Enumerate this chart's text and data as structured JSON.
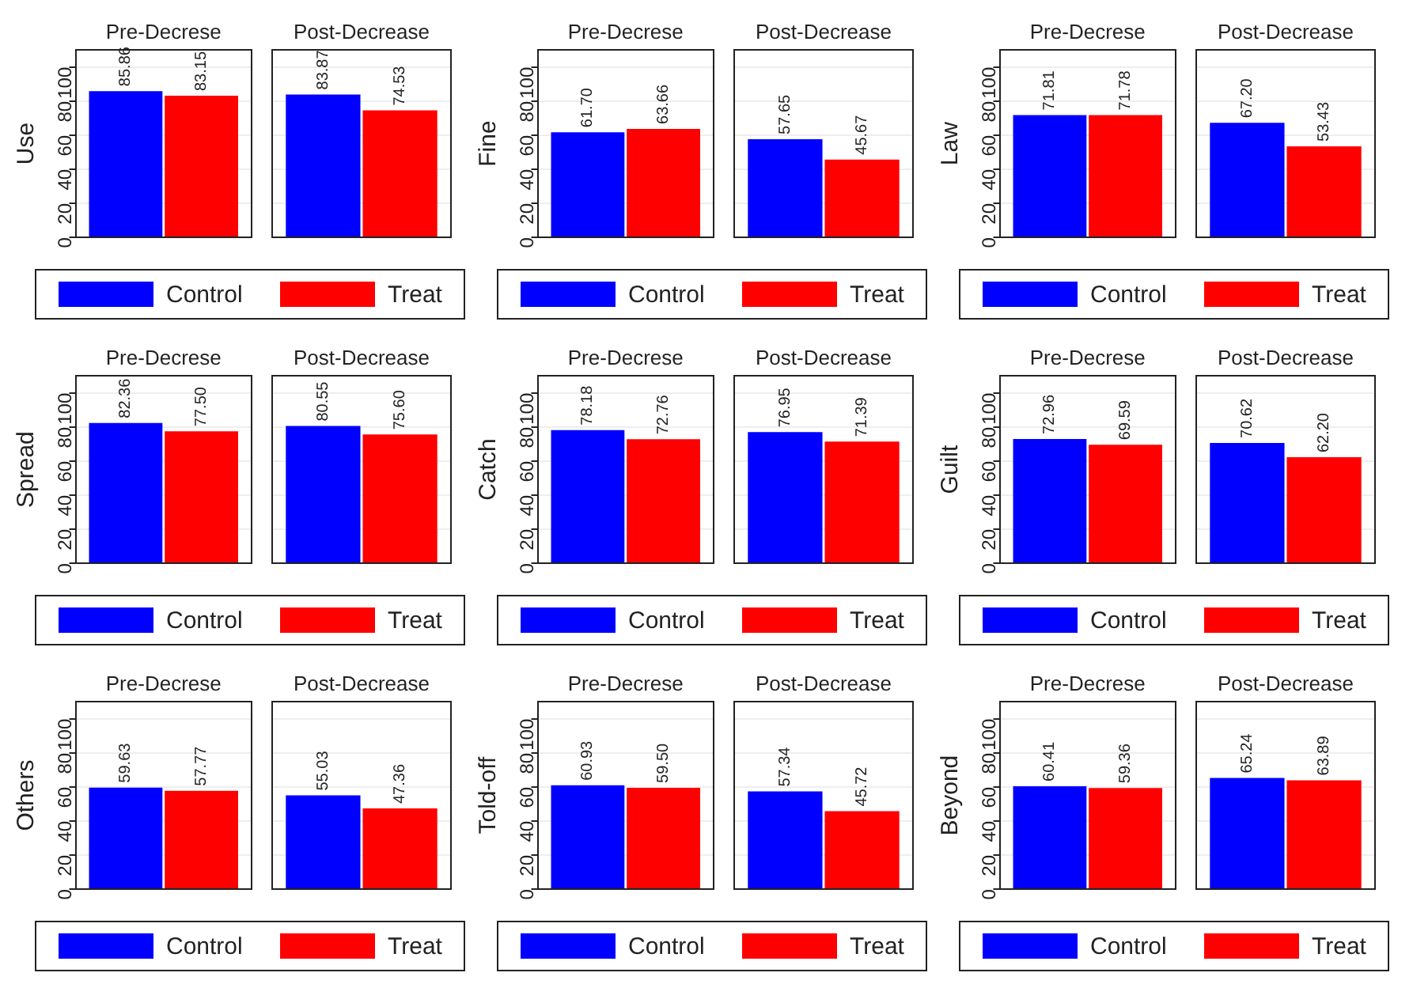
{
  "chart_data": [
    {
      "type": "bar",
      "ylabel": "Use",
      "categories": [
        "Pre-Decrese",
        "Post-Decrease"
      ],
      "ylim": [
        0,
        110
      ],
      "yticks": [
        0,
        20,
        40,
        60,
        80,
        100
      ],
      "grid": "y",
      "legend": "bottom",
      "series": [
        {
          "name": "Control",
          "color": "#0000ff",
          "values": [
            85.86,
            83.87
          ],
          "value_labels": [
            "85.86",
            "83.87"
          ]
        },
        {
          "name": "Treat",
          "color": "#ff0000",
          "values": [
            83.15,
            74.53
          ],
          "value_labels": [
            "83.15",
            "74.53"
          ]
        }
      ]
    },
    {
      "type": "bar",
      "ylabel": "Fine",
      "categories": [
        "Pre-Decrese",
        "Post-Decrease"
      ],
      "ylim": [
        0,
        110
      ],
      "yticks": [
        0,
        20,
        40,
        60,
        80,
        100
      ],
      "grid": "y",
      "legend": "bottom",
      "series": [
        {
          "name": "Control",
          "color": "#0000ff",
          "values": [
            61.7,
            57.65
          ],
          "value_labels": [
            "61.70",
            "57.65"
          ]
        },
        {
          "name": "Treat",
          "color": "#ff0000",
          "values": [
            63.66,
            45.67
          ],
          "value_labels": [
            "63.66",
            "45.67"
          ]
        }
      ]
    },
    {
      "type": "bar",
      "ylabel": "Law",
      "categories": [
        "Pre-Decrese",
        "Post-Decrease"
      ],
      "ylim": [
        0,
        110
      ],
      "yticks": [
        0,
        20,
        40,
        60,
        80,
        100
      ],
      "grid": "y",
      "legend": "bottom",
      "series": [
        {
          "name": "Control",
          "color": "#0000ff",
          "values": [
            71.81,
            67.2
          ],
          "value_labels": [
            "71.81",
            "67.20"
          ]
        },
        {
          "name": "Treat",
          "color": "#ff0000",
          "values": [
            71.78,
            53.43
          ],
          "value_labels": [
            "71.78",
            "53.43"
          ]
        }
      ]
    },
    {
      "type": "bar",
      "ylabel": "Spread",
      "categories": [
        "Pre-Decrese",
        "Post-Decrease"
      ],
      "ylim": [
        0,
        110
      ],
      "yticks": [
        0,
        20,
        40,
        60,
        80,
        100
      ],
      "grid": "y",
      "legend": "bottom",
      "series": [
        {
          "name": "Control",
          "color": "#0000ff",
          "values": [
            82.36,
            80.55
          ],
          "value_labels": [
            "82.36",
            "80.55"
          ]
        },
        {
          "name": "Treat",
          "color": "#ff0000",
          "values": [
            77.5,
            75.6
          ],
          "value_labels": [
            "77.50",
            "75.60"
          ]
        }
      ]
    },
    {
      "type": "bar",
      "ylabel": "Catch",
      "categories": [
        "Pre-Decrese",
        "Post-Decrease"
      ],
      "ylim": [
        0,
        110
      ],
      "yticks": [
        0,
        20,
        40,
        60,
        80,
        100
      ],
      "grid": "y",
      "legend": "bottom",
      "series": [
        {
          "name": "Control",
          "color": "#0000ff",
          "values": [
            78.18,
            76.95
          ],
          "value_labels": [
            "78.18",
            "76.95"
          ]
        },
        {
          "name": "Treat",
          "color": "#ff0000",
          "values": [
            72.76,
            71.39
          ],
          "value_labels": [
            "72.76",
            "71.39"
          ]
        }
      ]
    },
    {
      "type": "bar",
      "ylabel": "Guilt",
      "categories": [
        "Pre-Decrese",
        "Post-Decrease"
      ],
      "ylim": [
        0,
        110
      ],
      "yticks": [
        0,
        20,
        40,
        60,
        80,
        100
      ],
      "grid": "y",
      "legend": "bottom",
      "series": [
        {
          "name": "Control",
          "color": "#0000ff",
          "values": [
            72.96,
            70.62
          ],
          "value_labels": [
            "72.96",
            "70.62"
          ]
        },
        {
          "name": "Treat",
          "color": "#ff0000",
          "values": [
            69.59,
            62.2
          ],
          "value_labels": [
            "69.59",
            "62.20"
          ]
        }
      ]
    },
    {
      "type": "bar",
      "ylabel": "Others",
      "categories": [
        "Pre-Decrese",
        "Post-Decrease"
      ],
      "ylim": [
        0,
        110
      ],
      "yticks": [
        0,
        20,
        40,
        60,
        80,
        100
      ],
      "grid": "y",
      "legend": "bottom",
      "series": [
        {
          "name": "Control",
          "color": "#0000ff",
          "values": [
            59.63,
            55.03
          ],
          "value_labels": [
            "59.63",
            "55.03"
          ]
        },
        {
          "name": "Treat",
          "color": "#ff0000",
          "values": [
            57.77,
            47.36
          ],
          "value_labels": [
            "57.77",
            "47.36"
          ]
        }
      ]
    },
    {
      "type": "bar",
      "ylabel": "Told-off",
      "categories": [
        "Pre-Decrese",
        "Post-Decrease"
      ],
      "ylim": [
        0,
        110
      ],
      "yticks": [
        0,
        20,
        40,
        60,
        80,
        100
      ],
      "grid": "y",
      "legend": "bottom",
      "series": [
        {
          "name": "Control",
          "color": "#0000ff",
          "values": [
            60.93,
            57.34
          ],
          "value_labels": [
            "60.93",
            "57.34"
          ]
        },
        {
          "name": "Treat",
          "color": "#ff0000",
          "values": [
            59.5,
            45.72
          ],
          "value_labels": [
            "59.50",
            "45.72"
          ]
        }
      ]
    },
    {
      "type": "bar",
      "ylabel": "Beyond",
      "categories": [
        "Pre-Decrese",
        "Post-Decrease"
      ],
      "ylim": [
        0,
        110
      ],
      "yticks": [
        0,
        20,
        40,
        60,
        80,
        100
      ],
      "grid": "y",
      "legend": "bottom",
      "series": [
        {
          "name": "Control",
          "color": "#0000ff",
          "values": [
            60.41,
            65.24
          ],
          "value_labels": [
            "60.41",
            "65.24"
          ]
        },
        {
          "name": "Treat",
          "color": "#ff0000",
          "values": [
            59.36,
            63.89
          ],
          "value_labels": [
            "59.36",
            "63.89"
          ]
        }
      ]
    }
  ]
}
